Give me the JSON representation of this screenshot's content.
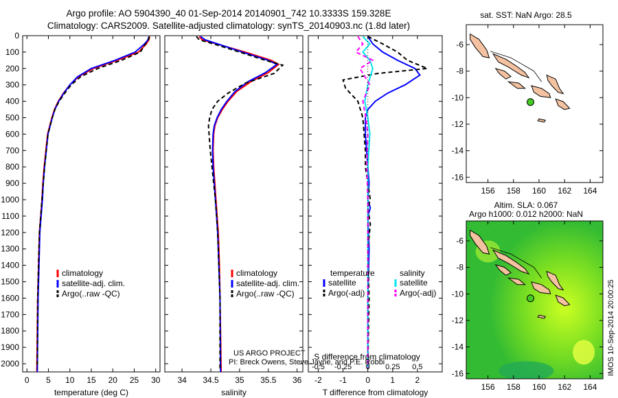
{
  "header": {
    "line1": "Argo profile: AO 5904390_40 01-Sep-2014 20140901_742 10.3333S 159.328E",
    "line2": "Climatology: CARS2009. Satellite-adjusted climatology: synTS_20140903.nc (1.8d later)"
  },
  "credits": {
    "project": "US ARGO PROJECT",
    "pi": "PI: Breck Owens, Steve Jayne, and P.E. Robbi"
  },
  "side_stamp": "IMOS 10-Sep-2014 20:00:25",
  "colors": {
    "climatology": "#ff0000",
    "satellite": "#0000ff",
    "argo": "#000000",
    "salinity_sat": "#00e5ee",
    "salinity_argo": "#ff00ff",
    "land": "#f4c2a0",
    "sla_green": "#44cc22"
  },
  "chart_data": [
    {
      "id": "temperature",
      "type": "line",
      "xlabel": "temperature (deg C)",
      "ylabel": "",
      "xlim": [
        -1,
        31
      ],
      "ylim": [
        2050,
        0
      ],
      "xticks": [
        0,
        5,
        10,
        15,
        20,
        25,
        30
      ],
      "yticks": [
        0,
        100,
        200,
        300,
        400,
        500,
        600,
        700,
        800,
        900,
        1000,
        1100,
        1200,
        1300,
        1400,
        1500,
        1600,
        1700,
        1800,
        1900,
        2000
      ],
      "legend": [
        "climatology",
        "satellite-adj. clim.",
        "Argo(..raw -QC)"
      ],
      "series": [
        {
          "name": "climatology",
          "color": "#ff0000",
          "dash": "",
          "x": [
            28.6,
            28.4,
            27.8,
            26.0,
            21.0,
            15.5,
            12.0,
            10.0,
            8.5,
            7.3,
            6.4,
            5.8,
            5.3,
            4.8,
            4.4,
            4.0,
            3.7,
            3.5,
            3.2,
            2.9,
            2.7,
            2.5,
            2.3
          ],
          "y": [
            5,
            25,
            50,
            100,
            150,
            200,
            250,
            300,
            350,
            400,
            450,
            500,
            550,
            600,
            700,
            800,
            900,
            1000,
            1100,
            1200,
            1400,
            1600,
            2050
          ]
        },
        {
          "name": "satellite-adj. clim.",
          "color": "#0000ff",
          "dash": "",
          "x": [
            28.4,
            28.2,
            27.4,
            25.2,
            20.5,
            15.0,
            11.8,
            10.0,
            8.6,
            7.4,
            6.5,
            5.9,
            5.4,
            4.9,
            4.5,
            4.1,
            3.8,
            3.6,
            3.3,
            3.0,
            2.8,
            2.6,
            2.4
          ],
          "y": [
            5,
            25,
            50,
            100,
            150,
            200,
            250,
            300,
            350,
            400,
            450,
            500,
            550,
            600,
            700,
            800,
            900,
            1000,
            1100,
            1200,
            1400,
            1600,
            2050
          ]
        },
        {
          "name": "Argo(..raw -QC)",
          "color": "#000000",
          "dash": "6,4",
          "x": [
            28.5,
            28.3,
            27.6,
            26.4,
            22.0,
            16.5,
            12.5,
            10.3,
            8.8,
            7.5,
            6.5,
            5.9,
            5.4,
            4.9,
            4.5,
            4.1,
            3.8,
            3.5,
            3.2,
            2.9,
            2.7,
            2.5,
            2.4
          ],
          "y": [
            5,
            25,
            50,
            100,
            150,
            200,
            250,
            300,
            350,
            400,
            450,
            500,
            550,
            600,
            700,
            800,
            900,
            1000,
            1100,
            1200,
            1400,
            1600,
            2030
          ]
        }
      ]
    },
    {
      "id": "salinity",
      "type": "line",
      "xlabel": "salinity",
      "ylabel": "",
      "xlim": [
        33.7,
        36.1
      ],
      "ylim": [
        2050,
        0
      ],
      "xticks": [
        34,
        34.5,
        35,
        35.5,
        36
      ],
      "legend": [
        "climatology",
        "satellite-adj. clim.",
        "Argo(..raw -QC)"
      ],
      "series": [
        {
          "name": "climatology",
          "color": "#ff0000",
          "dash": "",
          "x": [
            34.3,
            34.35,
            34.6,
            35.1,
            35.55,
            35.68,
            35.5,
            35.2,
            34.95,
            34.8,
            34.7,
            34.62,
            34.57,
            34.55,
            34.54,
            34.55,
            34.57,
            34.59,
            34.61,
            34.63,
            34.65,
            34.66,
            34.68
          ],
          "y": [
            5,
            25,
            50,
            100,
            150,
            175,
            225,
            280,
            340,
            400,
            450,
            500,
            550,
            600,
            700,
            800,
            900,
            1000,
            1100,
            1200,
            1400,
            1600,
            2050
          ]
        },
        {
          "name": "satellite-adj. clim.",
          "color": "#0000ff",
          "dash": "",
          "x": [
            34.32,
            34.4,
            34.62,
            35.05,
            35.5,
            35.65,
            35.45,
            35.15,
            34.92,
            34.78,
            34.68,
            34.61,
            34.56,
            34.54,
            34.53,
            34.54,
            34.56,
            34.58,
            34.6,
            34.62,
            34.64,
            34.66,
            34.67
          ],
          "y": [
            5,
            25,
            50,
            100,
            150,
            175,
            225,
            280,
            340,
            400,
            450,
            500,
            550,
            600,
            700,
            800,
            900,
            1000,
            1100,
            1200,
            1400,
            1600,
            2050
          ]
        },
        {
          "name": "Argo(..raw -QC)",
          "color": "#000000",
          "dash": "6,4",
          "x": [
            34.25,
            34.3,
            34.55,
            35.0,
            35.45,
            35.75,
            35.6,
            35.1,
            34.8,
            34.62,
            34.52,
            34.48,
            34.46,
            34.47,
            34.49,
            34.52,
            34.55,
            34.58,
            34.6,
            34.62,
            34.64,
            34.66,
            34.66
          ],
          "y": [
            5,
            25,
            50,
            100,
            150,
            180,
            230,
            290,
            350,
            400,
            450,
            500,
            550,
            600,
            700,
            800,
            900,
            1000,
            1100,
            1200,
            1400,
            1600,
            2030
          ]
        }
      ]
    },
    {
      "id": "difference",
      "type": "line",
      "xlabel": "T difference from climatology",
      "xlabel2": "S difference from climatology",
      "xlim": [
        -2.4,
        3.0
      ],
      "xlim2": [
        -0.6,
        0.75
      ],
      "ylim": [
        2050,
        0
      ],
      "xticks": [
        -2,
        -1,
        0,
        1,
        2
      ],
      "xticks2": [
        -0.5,
        -0.25,
        0,
        0.25,
        0.5
      ],
      "xticks2_labels": [
        "-0.5",
        "-0.25",
        "0",
        "0.25",
        "0.5"
      ],
      "legend_headers": [
        "temperature",
        "salinity"
      ],
      "legend": [
        "satellite",
        "Argo(-adj)",
        "satellite",
        "Argo(-adj)"
      ],
      "series": [
        {
          "name": "satellite",
          "color": "#0000ff",
          "dash": "",
          "axis": "T",
          "x": [
            0.0,
            0.2,
            0.6,
            1.2,
            1.9,
            2.1,
            1.5,
            0.8,
            0.3,
            0.0,
            -0.1,
            -0.1,
            -0.05,
            0.0,
            0.05,
            0.0,
            0.1,
            0.0,
            0.05,
            0.0,
            0.0
          ],
          "y": [
            5,
            50,
            100,
            150,
            200,
            240,
            300,
            350,
            400,
            450,
            500,
            600,
            700,
            800,
            900,
            1000,
            1050,
            1100,
            1300,
            1600,
            2030
          ]
        },
        {
          "name": "Argo(-adj)",
          "color": "#000000",
          "dash": "6,4",
          "axis": "T",
          "x": [
            0.0,
            0.6,
            1.2,
            1.6,
            2.4,
            0.4,
            -1.0,
            -0.9,
            -0.4,
            -0.3,
            -0.2,
            -0.15,
            -0.1,
            -0.1,
            0.0,
            0.1,
            0.0,
            0.1,
            0.0,
            0.05,
            0.0
          ],
          "y": [
            5,
            50,
            100,
            150,
            200,
            230,
            270,
            320,
            400,
            450,
            500,
            600,
            700,
            800,
            900,
            1000,
            1050,
            1150,
            1300,
            1600,
            2030
          ]
        },
        {
          "name": "satellite",
          "color": "#00e5ee",
          "dash": "",
          "axis": "S",
          "x": [
            -0.05,
            0.02,
            -0.05,
            0.02,
            0.05,
            0.0,
            -0.03,
            0.0,
            0.02,
            0.0,
            0.0,
            0.0,
            0.0
          ],
          "y": [
            5,
            50,
            100,
            150,
            200,
            300,
            400,
            500,
            600,
            800,
            1000,
            1500,
            2030
          ]
        },
        {
          "name": "Argo(-adj)",
          "color": "#ff00ff",
          "dash": "6,4",
          "axis": "S",
          "x": [
            -0.1,
            -0.05,
            -0.12,
            0.05,
            -0.08,
            0.02,
            -0.05,
            -0.02,
            0.0,
            -0.01,
            0.0,
            0.0,
            0.0
          ],
          "y": [
            5,
            50,
            100,
            150,
            200,
            300,
            400,
            500,
            600,
            800,
            1000,
            1500,
            2030
          ]
        }
      ]
    },
    {
      "id": "sst_map",
      "type": "map",
      "title": "sat. SST: NaN Argo: 28.5",
      "xlim": [
        154.3,
        165.0
      ],
      "ylim": [
        -16.4,
        -4.5
      ],
      "xticks": [
        156,
        158,
        160,
        162,
        164
      ],
      "yticks": [
        -6,
        -8,
        -10,
        -12,
        -14,
        -16
      ],
      "float_position": {
        "lon": 159.328,
        "lat": -10.3333
      }
    },
    {
      "id": "sla_map",
      "type": "map",
      "title": "Altim. SLA: 0.067",
      "title2": "Argo h1000: 0.012 h2000: NaN",
      "xlim": [
        154.3,
        165.0
      ],
      "ylim": [
        -16.4,
        -4.5
      ],
      "xticks": [
        156,
        158,
        160,
        162,
        164
      ],
      "yticks": [
        -6,
        -8,
        -10,
        -12,
        -14,
        -16
      ],
      "float_position": {
        "lon": 159.328,
        "lat": -10.3333
      }
    }
  ]
}
